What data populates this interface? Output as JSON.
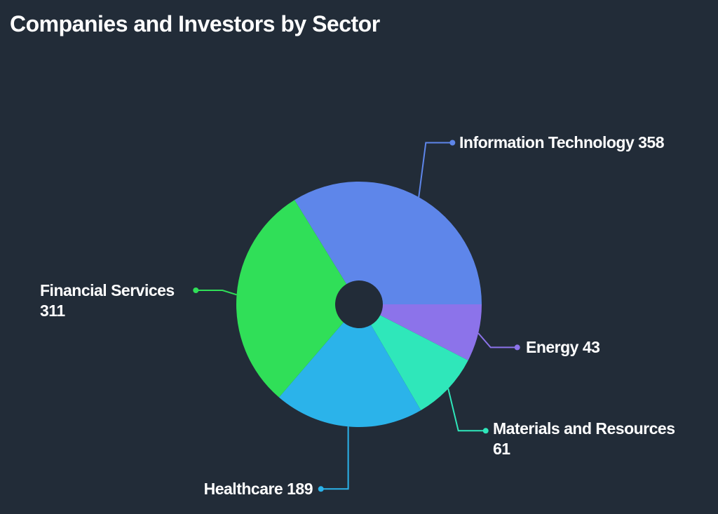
{
  "chart_data": {
    "type": "pie",
    "title": "Companies and Investors by Sector",
    "total": 962,
    "donut": true,
    "label_format": "{name} {value}",
    "legend": "none",
    "background_color": "#222c38",
    "text_color": "#ffffff",
    "series": [
      {
        "name": "Information Technology",
        "value": 358,
        "color": "#5e86ea"
      },
      {
        "name": "Energy",
        "value": 43,
        "color": "#8c73ea"
      },
      {
        "name": "Materials and Resources",
        "value": 61,
        "color": "#2fe7ba"
      },
      {
        "name": "Healthcare",
        "value": 189,
        "color": "#2bb3ea"
      },
      {
        "name": "Financial Services",
        "value": 311,
        "color": "#30df58"
      }
    ],
    "layout_hints": {
      "start_angle_deg": 328.3,
      "angle_padding_per_slice": 47.5,
      "center": [
        512,
        434
      ],
      "outer_radius": 175,
      "inner_radius": 34
    }
  }
}
